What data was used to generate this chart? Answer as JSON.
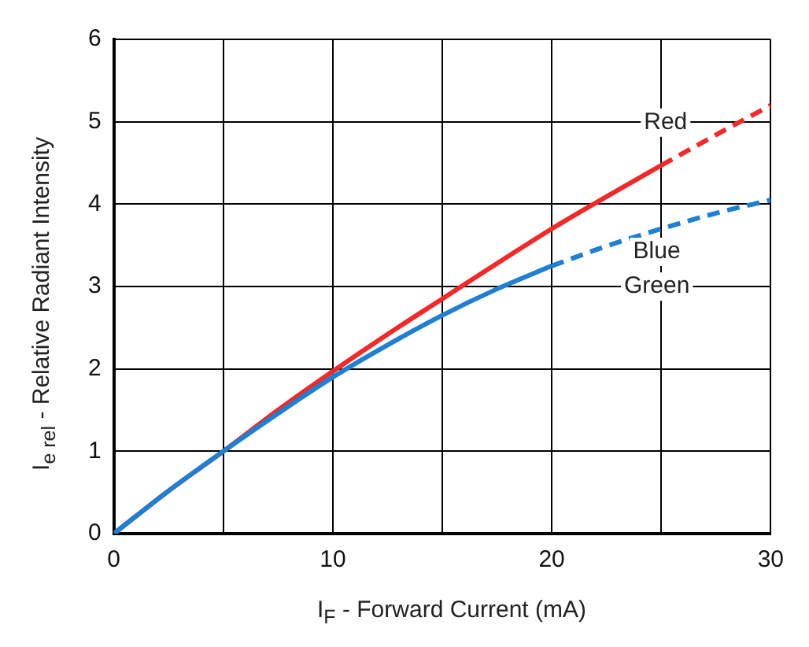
{
  "chart_data": {
    "type": "line",
    "xlabel": "I$_{F}$ - Forward Current (mA)",
    "ylabel": "I$_{e rel}$ - Relative Radiant Intensity",
    "xlim": [
      0,
      30
    ],
    "xticks": [
      0,
      {
        "value": 5,
        "label": null
      },
      10,
      {
        "value": 15,
        "label": null
      },
      20,
      {
        "value": 25,
        "label": null
      },
      30
    ],
    "ylim": [
      0,
      6
    ],
    "yticks": [
      0,
      1,
      2,
      3,
      4,
      5,
      6
    ],
    "grid": true,
    "marker": "none",
    "series": [
      {
        "color": "#1f7fd0",
        "line_style": "solid",
        "x": [
          0,
          2.5,
          5,
          7.5,
          10,
          12.5,
          15,
          17.5,
          20
        ],
        "values": [
          0,
          0.52,
          1.0,
          1.46,
          1.9,
          2.29,
          2.65,
          2.97,
          3.25
        ]
      },
      {
        "color": "#1f7fd0",
        "line_style": "dashed",
        "x": [
          20,
          22.5,
          25,
          27.5,
          30
        ],
        "values": [
          3.25,
          3.49,
          3.7,
          3.89,
          4.05
        ]
      },
      {
        "color": "#ee2a2a",
        "line_style": "solid",
        "x": [
          0,
          2.5,
          5,
          7.5,
          10,
          12.5,
          15,
          17.5,
          20,
          22.5,
          25
        ],
        "values": [
          0,
          0.52,
          1.0,
          1.5,
          1.97,
          2.42,
          2.85,
          3.28,
          3.7,
          4.09,
          4.47
        ]
      },
      {
        "color": "#ee2a2a",
        "line_style": "dashed",
        "x": [
          25,
          27.5,
          30
        ],
        "values": [
          4.47,
          4.84,
          5.2
        ]
      }
    ],
    "annotations": [
      {
        "text": "Red",
        "x": 25.2,
        "y": 4.99
      },
      {
        "text": "Blue",
        "x": 24.8,
        "y": 3.42
      },
      "Green"
    ]
  }
}
